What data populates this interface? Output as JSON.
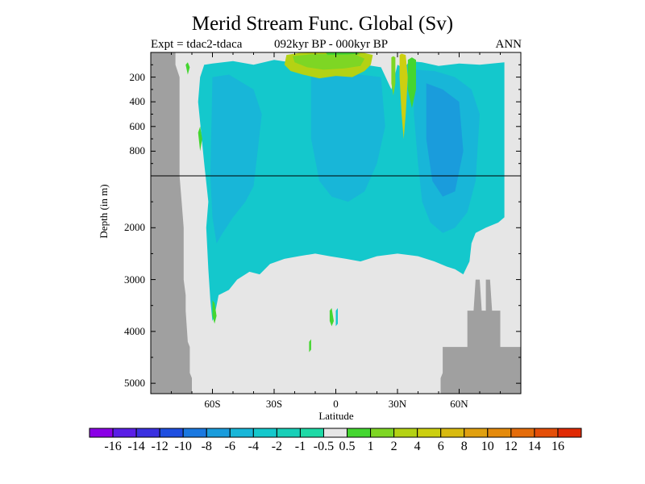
{
  "chart_data": {
    "type": "heatmap",
    "title": "Merid Stream Func. Global (Sv)",
    "subtitle_left": "Expt = tdac2-tdaca",
    "subtitle_center": "092kyr BP - 000kyr BP",
    "subtitle_right": "ANN",
    "xlabel": "Latitude",
    "ylabel": "Depth (in m)",
    "xlim": [
      -90,
      90
    ],
    "x_ticks": [
      {
        "value": -60,
        "label": "60S"
      },
      {
        "value": -30,
        "label": "30S"
      },
      {
        "value": 0,
        "label": "0"
      },
      {
        "value": 30,
        "label": "30N"
      },
      {
        "value": 60,
        "label": "60N"
      }
    ],
    "upper_depth_range": [
      0,
      1000
    ],
    "lower_depth_range": [
      1000,
      5200
    ],
    "y_ticks_upper": [
      {
        "value": 200,
        "label": "200"
      },
      {
        "value": 400,
        "label": "400"
      },
      {
        "value": 600,
        "label": "600"
      },
      {
        "value": 800,
        "label": "800"
      }
    ],
    "y_ticks_lower": [
      {
        "value": 2000,
        "label": "2000"
      },
      {
        "value": 3000,
        "label": "3000"
      },
      {
        "value": 4000,
        "label": "4000"
      },
      {
        "value": 5000,
        "label": "5000"
      }
    ],
    "colorbar": {
      "labels": [
        "-16",
        "-14",
        "-12",
        "-10",
        "-8",
        "-6",
        "-4",
        "-2",
        "-1",
        "-0.5",
        "0.5",
        "1",
        "2",
        "4",
        "6",
        "8",
        "10",
        "12",
        "14",
        "16"
      ],
      "colors": [
        "#8a00e6",
        "#5a1ee6",
        "#3a30e0",
        "#1e4ee0",
        "#1a78e0",
        "#1a9cdc",
        "#18b6d8",
        "#14c8cc",
        "#18cfb8",
        "#1ed9a6",
        "#e6e6e6",
        "#44d630",
        "#7ed624",
        "#b4d214",
        "#cccf10",
        "#d8ba10",
        "#e0a010",
        "#e48a0c",
        "#e46c0a",
        "#e44e08",
        "#e02a04"
      ],
      "zero_color": "#e6e6e6",
      "land_color": "#a0a0a0"
    },
    "regions": [
      {
        "name": "southern-land-boundary",
        "category": "land"
      },
      {
        "name": "northern-land-boundary",
        "category": "land"
      },
      {
        "name": "deep-overturning-cell",
        "value": -2,
        "category": "negative"
      },
      {
        "name": "intermediate-cell",
        "value": -4,
        "category": "negative"
      },
      {
        "name": "north-atlantic-cell",
        "value": -6,
        "category": "negative"
      },
      {
        "name": "tropical-surface-cell",
        "value": 4,
        "category": "positive"
      },
      {
        "name": "subtropical-jet",
        "value": 6,
        "category": "positive"
      },
      {
        "name": "near-surface-strip",
        "value": 1,
        "category": "positive"
      },
      {
        "name": "small-positive-patches",
        "value": 1,
        "category": "positive"
      }
    ]
  }
}
